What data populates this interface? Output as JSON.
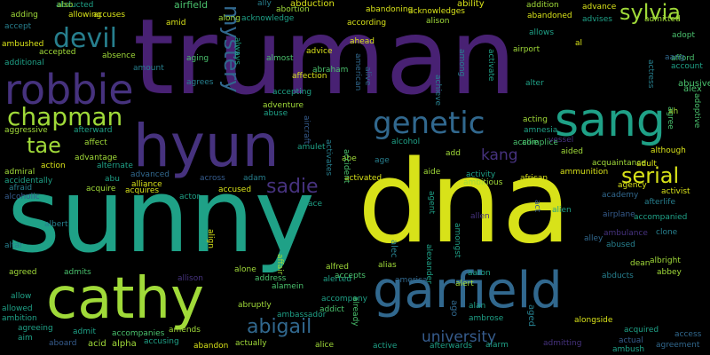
{
  "colors": {
    "background": "#000000",
    "dark_purple": "#46327e",
    "purple": "#482173",
    "blue": "#365c8d",
    "slate": "#31688e",
    "teal_blue": "#277f8e",
    "teal": "#1fa187",
    "green": "#4ac16d",
    "light_green": "#a0da39",
    "yellow": "#d8e219"
  },
  "words": [
    "truman",
    "dna",
    "sunny",
    "hyun",
    "sang",
    "garfield",
    "cathy",
    "robbie",
    "chapman",
    "genetic",
    "devil",
    "serial",
    "sylvia",
    "tae",
    "mystery",
    "sadie",
    "abigail",
    "kang",
    "university",
    "airfield",
    "abduction",
    "ability",
    "abandoning",
    "acknowledges",
    "advance",
    "abandoned",
    "advises",
    "admitted",
    "adopt",
    "afford",
    "abusive",
    "adoptive",
    "alex",
    "account",
    "agree",
    "actress",
    "aang",
    "ah",
    "ahead",
    "alison",
    "al",
    "airport",
    "alter",
    "activate",
    "among",
    "achieve",
    "alive",
    "american",
    "always",
    "aging",
    "agrees",
    "accusing",
    "acid",
    "alpha",
    "accompanies",
    "admit",
    "aboard",
    "aim",
    "agreeing",
    "ambition",
    "allowed",
    "allow",
    "agreed",
    "admits",
    "altar",
    "albert",
    "alcoholic",
    "afraid",
    "accidentally",
    "admiral",
    "action",
    "aggressive",
    "additional",
    "ambushed",
    "accept",
    "adding",
    "abducted",
    "accuses",
    "allowing",
    "also",
    "absence",
    "accepted",
    "amount",
    "afterward",
    "advantage",
    "alternate",
    "affect",
    "abu",
    "advanced",
    "alliance",
    "acquire",
    "acquires",
    "actor",
    "across",
    "adam",
    "accused",
    "abortion",
    "ally",
    "acknowledge",
    "almost",
    "abraham",
    "affection",
    "advice",
    "accepting",
    "adventure",
    "abuse",
    "aircraft",
    "amulet",
    "activates",
    "abe",
    "activated",
    "ace",
    "align",
    "alone",
    "address",
    "allison",
    "affair",
    "alamein",
    "abruptly",
    "ambassador",
    "actually",
    "abandon",
    "amends",
    "accompany",
    "addict",
    "accident",
    "alerted",
    "alfred",
    "accepts",
    "alias",
    "alec",
    "amongst",
    "alexander",
    "america",
    "alert",
    "agent",
    "aide",
    "add",
    "ambitious",
    "activity",
    "african",
    "allie",
    "allen",
    "alien",
    "act",
    "ambrose",
    "alan",
    "ago",
    "aaron",
    "already",
    "alice",
    "active",
    "afterwards",
    "alarm",
    "aged",
    "acting",
    "amnesia",
    "accomplice",
    "aided",
    "ammunition",
    "acquaintance",
    "although",
    "adult",
    "agency",
    "academy",
    "afterlife",
    "activist",
    "airplane",
    "accompanied",
    "clone",
    "albright",
    "abused",
    "ambulance",
    "alley",
    "abbey",
    "dean",
    "abducts",
    "alongside",
    "acquired",
    "admitting",
    "actual",
    "agreement",
    "access",
    "ambush",
    "along",
    "amid",
    "alcohol",
    "vessel",
    "allows",
    "addition",
    "according",
    "age"
  ]
}
